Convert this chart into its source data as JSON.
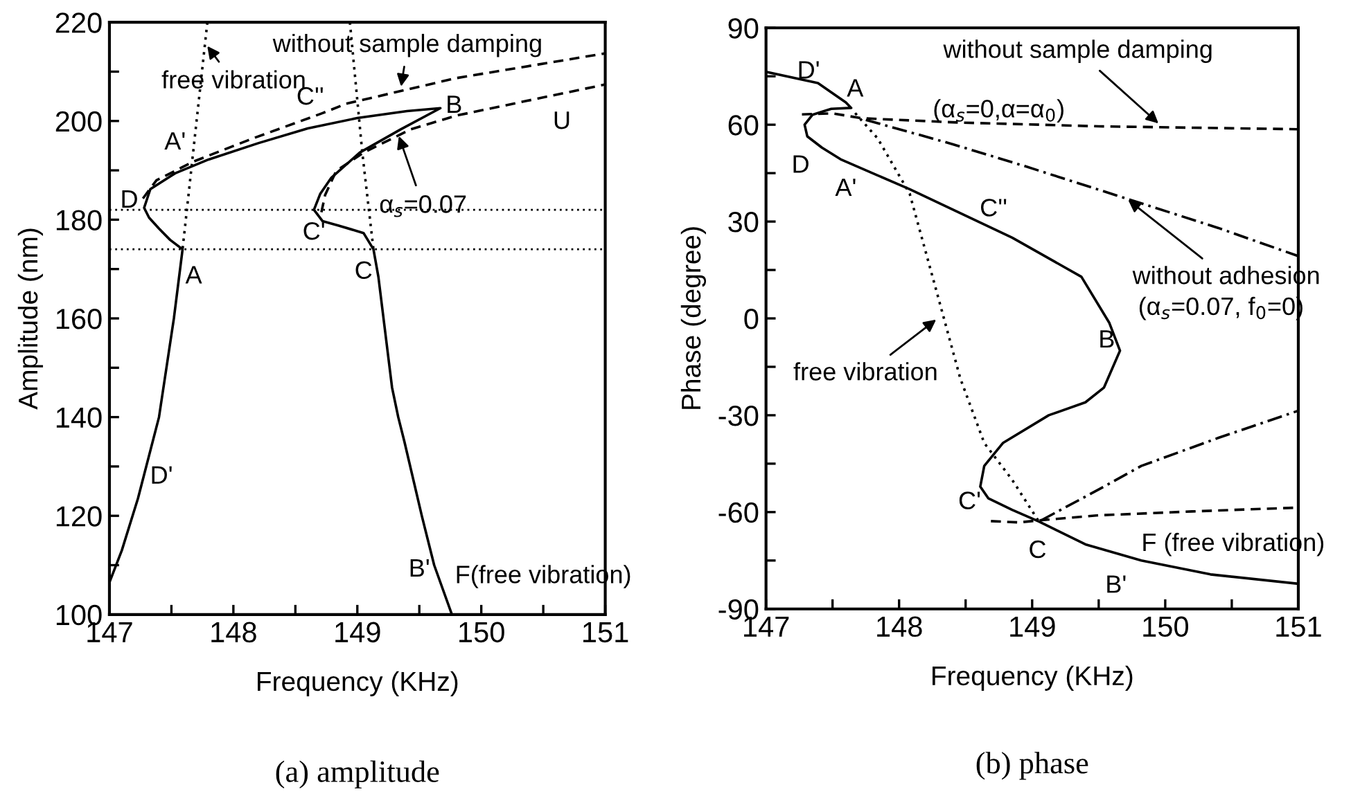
{
  "chart_data": [
    {
      "type": "line",
      "xlabel": "Frequency (KHz)",
      "ylabel": "Amplitude (nm)",
      "xlim": [
        147,
        151
      ],
      "xticks": [
        147,
        {
          "value": 147.5,
          "label": null
        },
        148,
        {
          "value": 148.5,
          "label": null
        },
        149,
        {
          "value": 149.5,
          "label": null
        },
        150,
        {
          "value": 150.5,
          "label": null
        },
        151
      ],
      "ylim": [
        100,
        220
      ],
      "yticks": [
        100,
        {
          "value": 110,
          "label": null
        },
        120,
        {
          "value": 130,
          "label": null
        },
        140,
        {
          "value": 150,
          "label": null
        },
        160,
        {
          "value": 170,
          "label": null
        },
        180,
        {
          "value": 190,
          "label": null
        },
        200,
        {
          "value": 210,
          "label": null
        },
        220
      ],
      "series": [
        {
          "color": "#000000",
          "line_style": "solid",
          "x": [
            147.0,
            147.1,
            147.23,
            147.4,
            147.52,
            147.59,
            147.49,
            147.4,
            147.32,
            147.28,
            147.33,
            147.53,
            147.8,
            148.2,
            148.6,
            149.0,
            149.4,
            149.67,
            149.35,
            149.02,
            148.79,
            148.7,
            148.65,
            148.72,
            148.85,
            149.05,
            149.13,
            149.17,
            149.28,
            149.33,
            149.38,
            149.52,
            149.62,
            149.76
          ],
          "values": [
            106.5,
            113,
            123.5,
            140,
            160,
            174,
            175.9,
            178.2,
            180.4,
            182.4,
            186.2,
            189.4,
            192.2,
            195.5,
            198.5,
            200.6,
            202.0,
            202.6,
            198.3,
            193.6,
            188.5,
            185.2,
            182.0,
            179.7,
            178.8,
            177.3,
            174,
            168.4,
            146,
            140,
            135,
            120,
            110,
            100.2
          ]
        },
        {
          "color": "#000000",
          "line_style": "dashed",
          "x": [
            147.27,
            147.38,
            147.68,
            148.16,
            148.72,
            148.91,
            149.8,
            151.0
          ],
          "values": [
            184.3,
            188,
            191.8,
            196.5,
            201.6,
            203.5,
            208.7,
            213.7
          ]
        },
        {
          "color": "#000000",
          "line_style": "dashed",
          "x": [
            148.71,
            148.74,
            148.83,
            149.05,
            149.43,
            149.8,
            151.0
          ],
          "values": [
            181.5,
            185,
            189.9,
            193.6,
            198.3,
            201.1,
            207.4
          ]
        },
        {
          "color": "#000000",
          "line_style": "dotted",
          "x": [
            147.79,
            147.59
          ],
          "values": [
            220,
            174
          ]
        },
        {
          "color": "#000000",
          "line_style": "dotted",
          "x": [
            148.94,
            149.04,
            149.13
          ],
          "values": [
            220,
            193.6,
            174
          ]
        }
      ],
      "ref_lines": [
        {
          "axis": "y",
          "value": 182,
          "color": "#000000",
          "line_style": "dotted"
        },
        {
          "axis": "y",
          "value": 174,
          "color": "#000000",
          "line_style": "dotted"
        }
      ],
      "annotations": [
        {
          "text": "without sample damping",
          "x": 149.35,
          "y": 206.6
        },
        {
          "text": "free vibration",
          "x": 147.78,
          "y": 215.5
        },
        {
          "text": "α$_{s}$=0.07",
          "x": 149.33,
          "y": 197.3
        },
        "A",
        "A'",
        "D",
        "C''",
        "C'",
        "C",
        "B",
        "U",
        "D'",
        "B'",
        "F(free vibration)",
        "(a) amplitude"
      ]
    },
    {
      "type": "line",
      "xlabel": "Frequency (KHz)",
      "ylabel": "Phase (degree)",
      "xlim": [
        147,
        151
      ],
      "xticks": [
        147,
        {
          "value": 147.5,
          "label": null
        },
        148,
        {
          "value": 148.5,
          "label": null
        },
        149,
        {
          "value": 149.5,
          "label": null
        },
        150,
        {
          "value": 150.5,
          "label": null
        },
        151
      ],
      "ylim": [
        -90,
        90
      ],
      "yticks": [
        -90,
        {
          "value": -75,
          "label": null
        },
        -60,
        {
          "value": -45,
          "label": null
        },
        -30,
        {
          "value": -15,
          "label": null
        },
        0,
        {
          "value": 15,
          "label": null
        },
        30,
        {
          "value": 45,
          "label": null
        },
        60,
        {
          "value": 75,
          "label": null
        },
        90
      ],
      "series": [
        {
          "color": "#000000",
          "line_style": "solid",
          "x": [
            147.0,
            147.39,
            147.6,
            147.64,
            147.49,
            147.35,
            147.29,
            147.31,
            147.42,
            147.56,
            148.08,
            148.85,
            149.37,
            149.58,
            149.66,
            149.54,
            149.4,
            149.125,
            148.78,
            148.64,
            148.61,
            148.67,
            148.85,
            149.05,
            149.4,
            149.82,
            150.34,
            151.0
          ],
          "values": [
            76.4,
            72.9,
            66.9,
            65.2,
            64.9,
            63.1,
            60,
            56.4,
            52.9,
            49.3,
            40,
            25,
            12.9,
            -1.4,
            -10,
            -21.4,
            -26,
            -30,
            -38.6,
            -45.7,
            -52.1,
            -55.7,
            -59.3,
            -62.9,
            -70,
            -75,
            -79.3,
            -82.2
          ]
        },
        {
          "color": "#000000",
          "line_style": "dashed",
          "x": [
            147.27,
            147.5,
            147.72,
            148.43,
            149.5,
            151.0
          ],
          "values": [
            63.2,
            63.5,
            62,
            60.7,
            59.5,
            58.6
          ]
        },
        {
          "color": "#000000",
          "line_style": "dashed",
          "x": [
            148.69,
            148.9,
            149.07,
            149.5,
            150.2,
            151.0
          ],
          "values": [
            -62.8,
            -63.2,
            -62.5,
            -61,
            -59.8,
            -58.6
          ]
        },
        {
          "color": "#000000",
          "line_style": "dashdot",
          "x": [
            147.75,
            148.4,
            148.95,
            149.71,
            150.4,
            151.0
          ],
          "values": [
            61.5,
            54,
            47.1,
            37.1,
            28,
            19.3
          ]
        },
        {
          "color": "#000000",
          "line_style": "dashdot",
          "x": [
            149.07,
            149.5,
            149.82,
            150.4,
            151.0
          ],
          "values": [
            -62.5,
            -53,
            -45.7,
            -37,
            -28.6
          ]
        },
        {
          "color": "#000000",
          "line_style": "dotted",
          "x": [
            147.67,
            147.84,
            148.08,
            148.29,
            148.46,
            148.64,
            148.85,
            149.05
          ],
          "values": [
            63.6,
            55.7,
            38.6,
            7.1,
            -18.6,
            -38.6,
            -50,
            -62.9
          ]
        }
      ],
      "annotations": [
        {
          "text": "without sample damping",
          "x": 149.96,
          "y": 60
        },
        "(α$_{s}$=0,α=α$_{0}$)",
        {
          "text": "without adhesion",
          "x": 149.71,
          "y": 37.1
        },
        "(α$_{s}$=0.07, f$_{0}$=0)",
        {
          "text": "free vibration",
          "x": 148.29,
          "y": 0
        },
        "D'",
        "A",
        "D",
        "A'",
        "C''",
        "B",
        "C'",
        "C",
        "B'",
        "F (free vibration)",
        "(b) phase"
      ]
    }
  ]
}
